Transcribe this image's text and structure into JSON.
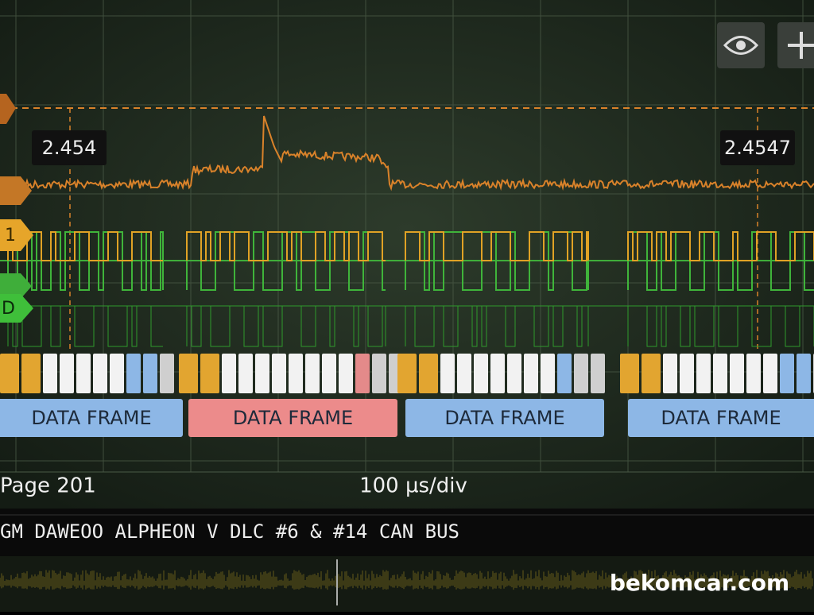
{
  "cursors": [
    "2.454",
    "2.4547"
  ],
  "channel_tags": [
    "1",
    "D"
  ],
  "frames": [
    {
      "label": "DATA FRAME",
      "color": "#8db7e6"
    },
    {
      "label": "DATA FRAME",
      "color": "#ec8b8b"
    },
    {
      "label": "DATA FRAME",
      "color": "#8db7e6"
    },
    {
      "label": "DATA FRAME",
      "color": "#8db7e6"
    }
  ],
  "status": {
    "page": "Page 201",
    "timebase": "100 µs/div"
  },
  "title": "GM DAWEOO ALPHEON V DLC #6 & #14 CAN BUS",
  "watermark": "bekomcar.com"
}
